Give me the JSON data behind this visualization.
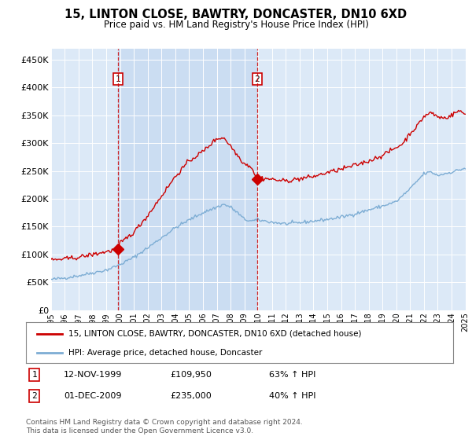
{
  "title": "15, LINTON CLOSE, BAWTRY, DONCASTER, DN10 6XD",
  "subtitle": "Price paid vs. HM Land Registry's House Price Index (HPI)",
  "ylim": [
    0,
    470000
  ],
  "yticks": [
    0,
    50000,
    100000,
    150000,
    200000,
    250000,
    300000,
    350000,
    400000,
    450000
  ],
  "ytick_labels": [
    "£0",
    "£50K",
    "£100K",
    "£150K",
    "£200K",
    "£250K",
    "£300K",
    "£350K",
    "£400K",
    "£450K"
  ],
  "plot_bg_color": "#dce9f7",
  "shade_color": "#c5d9f0",
  "red_line_color": "#cc0000",
  "blue_line_color": "#7dadd4",
  "grid_color": "#b0c4de",
  "transaction1_date": 1999.87,
  "transaction1_value": 109950,
  "transaction2_date": 2009.92,
  "transaction2_value": 235000,
  "legend_line1": "15, LINTON CLOSE, BAWTRY, DONCASTER, DN10 6XD (detached house)",
  "legend_line2": "HPI: Average price, detached house, Doncaster",
  "table_row1_label": "1",
  "table_row1_date": "12-NOV-1999",
  "table_row1_price": "£109,950",
  "table_row1_hpi": "63% ↑ HPI",
  "table_row2_label": "2",
  "table_row2_date": "01-DEC-2009",
  "table_row2_price": "£235,000",
  "table_row2_hpi": "40% ↑ HPI",
  "footer": "Contains HM Land Registry data © Crown copyright and database right 2024.\nThis data is licensed under the Open Government Licence v3.0."
}
